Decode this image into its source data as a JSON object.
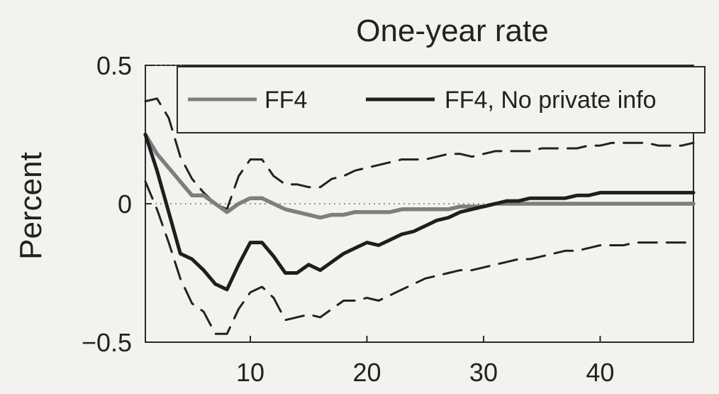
{
  "chart_data": {
    "type": "line",
    "title": "One-year rate",
    "xlabel": "",
    "ylabel": "Percent",
    "xlim": [
      1,
      48
    ],
    "ylim": [
      -0.5,
      0.5
    ],
    "x_ticks": [
      10,
      20,
      30,
      40
    ],
    "y_ticks": [
      -0.5,
      0,
      0.5
    ],
    "y_tick_labels": [
      "−0.5",
      "0",
      "0.5"
    ],
    "zero_line": true,
    "legend_position": "top-right",
    "x": [
      1,
      2,
      3,
      4,
      5,
      6,
      7,
      8,
      9,
      10,
      11,
      12,
      13,
      14,
      15,
      16,
      17,
      18,
      19,
      20,
      21,
      22,
      23,
      24,
      25,
      26,
      27,
      28,
      29,
      30,
      31,
      32,
      33,
      34,
      35,
      36,
      37,
      38,
      39,
      40,
      41,
      42,
      43,
      44,
      45,
      46,
      47,
      48
    ],
    "series": [
      {
        "name": "FF4",
        "color": "#7e7e7e",
        "style": "solid",
        "values": [
          0.25,
          0.18,
          0.13,
          0.08,
          0.03,
          0.03,
          0.0,
          -0.03,
          0.0,
          0.02,
          0.02,
          0.0,
          -0.02,
          -0.03,
          -0.04,
          -0.05,
          -0.04,
          -0.04,
          -0.03,
          -0.03,
          -0.03,
          -0.03,
          -0.02,
          -0.02,
          -0.02,
          -0.02,
          -0.02,
          -0.01,
          -0.01,
          -0.01,
          0.0,
          0.0,
          0.0,
          0.0,
          0.0,
          0.0,
          0.0,
          0.0,
          0.0,
          0.0,
          0.0,
          0.0,
          0.0,
          0.0,
          0.0,
          0.0,
          0.0,
          0.0
        ]
      },
      {
        "name": "FF4, No private info",
        "color": "#1e1e1e",
        "style": "solid",
        "values": [
          0.25,
          0.12,
          -0.03,
          -0.18,
          -0.2,
          -0.24,
          -0.29,
          -0.31,
          -0.22,
          -0.14,
          -0.14,
          -0.19,
          -0.25,
          -0.25,
          -0.22,
          -0.24,
          -0.21,
          -0.18,
          -0.16,
          -0.14,
          -0.15,
          -0.13,
          -0.11,
          -0.1,
          -0.08,
          -0.06,
          -0.05,
          -0.03,
          -0.02,
          -0.01,
          0.0,
          0.01,
          0.01,
          0.02,
          0.02,
          0.02,
          0.02,
          0.03,
          0.03,
          0.04,
          0.04,
          0.04,
          0.04,
          0.04,
          0.04,
          0.04,
          0.04,
          0.04
        ]
      },
      {
        "name": "",
        "color": "#222222",
        "style": "dashed",
        "values": [
          0.37,
          0.38,
          0.31,
          0.17,
          0.09,
          0.04,
          0.0,
          -0.02,
          0.1,
          0.16,
          0.16,
          0.1,
          0.07,
          0.07,
          0.06,
          0.06,
          0.09,
          0.1,
          0.12,
          0.13,
          0.14,
          0.15,
          0.16,
          0.16,
          0.16,
          0.17,
          0.18,
          0.18,
          0.17,
          0.18,
          0.19,
          0.19,
          0.19,
          0.19,
          0.2,
          0.2,
          0.2,
          0.2,
          0.21,
          0.21,
          0.22,
          0.22,
          0.22,
          0.22,
          0.21,
          0.21,
          0.21,
          0.22
        ]
      },
      {
        "name": "",
        "color": "#222222",
        "style": "dashed",
        "values": [
          0.08,
          -0.02,
          -0.14,
          -0.27,
          -0.36,
          -0.39,
          -0.47,
          -0.47,
          -0.38,
          -0.32,
          -0.3,
          -0.34,
          -0.42,
          -0.41,
          -0.4,
          -0.41,
          -0.38,
          -0.35,
          -0.35,
          -0.34,
          -0.35,
          -0.33,
          -0.31,
          -0.29,
          -0.27,
          -0.26,
          -0.25,
          -0.24,
          -0.24,
          -0.23,
          -0.22,
          -0.21,
          -0.2,
          -0.2,
          -0.19,
          -0.18,
          -0.17,
          -0.17,
          -0.16,
          -0.15,
          -0.15,
          -0.15,
          -0.14,
          -0.14,
          -0.14,
          -0.14,
          -0.14,
          -0.14
        ]
      }
    ]
  }
}
